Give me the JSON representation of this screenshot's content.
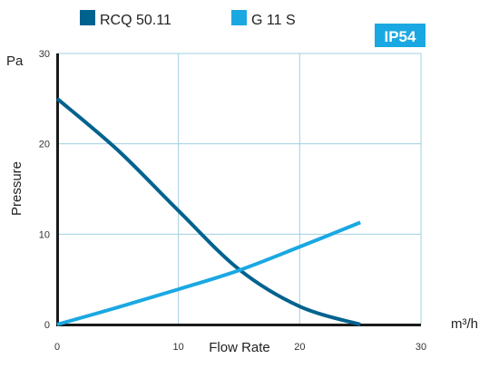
{
  "chart_data": {
    "type": "line",
    "xlabel": "Flow Rate",
    "ylabel": "Pressure",
    "x_unit": "m³/h",
    "y_unit": "Pa",
    "xlim": [
      0,
      30
    ],
    "ylim": [
      0,
      30
    ],
    "x_ticks": [
      "0",
      "10",
      "20",
      "30"
    ],
    "y_ticks": [
      "0",
      "10",
      "20",
      "30"
    ],
    "grid": true,
    "legend_position": "top-left",
    "badge": "IP54",
    "series": [
      {
        "name": "RCQ 50.11",
        "color": "#00628f",
        "points": [
          [
            0,
            25
          ],
          [
            5,
            19.3
          ],
          [
            10,
            12.6
          ],
          [
            15,
            6.1
          ],
          [
            20,
            2.0
          ],
          [
            25,
            0
          ]
        ]
      },
      {
        "name": "G 11 S",
        "color": "#1aa8e2",
        "points": [
          [
            0,
            0
          ],
          [
            5,
            1.9
          ],
          [
            10,
            3.9
          ],
          [
            15,
            6.0
          ],
          [
            20,
            8.6
          ],
          [
            25,
            11.3
          ]
        ]
      }
    ]
  },
  "colors": {
    "grid": "#9fd0e0",
    "axis": "#1a1a1a",
    "badge_bg": "#1aa8e2"
  }
}
